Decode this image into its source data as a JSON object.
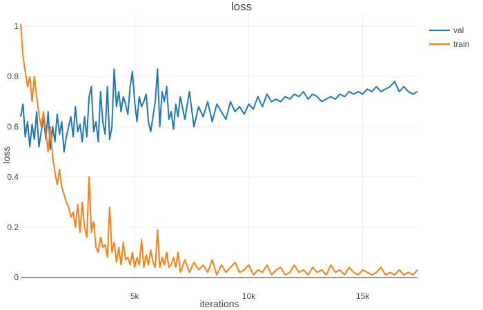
{
  "chart_data": {
    "type": "line",
    "title": "loss",
    "xlabel": "iterations",
    "ylabel": "loss",
    "xlim": [
      0,
      17400
    ],
    "ylim": [
      -0.02,
      1.05
    ],
    "x_ticks": [
      5000,
      10000,
      15000
    ],
    "x_tick_labels": [
      "5k",
      "10k",
      "15k"
    ],
    "y_ticks": [
      0,
      0.2,
      0.4,
      0.6,
      0.8,
      1
    ],
    "y_tick_labels": [
      "0",
      "0.2",
      "0.4",
      "0.6",
      "0.8",
      "1"
    ],
    "grid": true,
    "legend_position": "top-right",
    "series": [
      {
        "name": "val",
        "color": "#1f77b4",
        "x": [
          0,
          100,
          200,
          300,
          400,
          500,
          600,
          700,
          800,
          900,
          1000,
          1100,
          1200,
          1300,
          1400,
          1500,
          1600,
          1700,
          1800,
          1900,
          2000,
          2100,
          2200,
          2300,
          2400,
          2500,
          2600,
          2700,
          2800,
          2900,
          3000,
          3100,
          3200,
          3300,
          3400,
          3500,
          3600,
          3700,
          3800,
          3900,
          4000,
          4100,
          4200,
          4300,
          4400,
          4500,
          4600,
          4700,
          4800,
          4900,
          5000,
          5100,
          5200,
          5300,
          5400,
          5500,
          5600,
          5700,
          5800,
          5900,
          6000,
          6100,
          6200,
          6300,
          6400,
          6500,
          6600,
          6700,
          6800,
          6900,
          7000,
          7200,
          7400,
          7600,
          7800,
          8000,
          8200,
          8400,
          8600,
          8800,
          9000,
          9200,
          9400,
          9600,
          9800,
          10000,
          10200,
          10400,
          10600,
          10800,
          11000,
          11200,
          11400,
          11600,
          11800,
          12000,
          12200,
          12400,
          12600,
          12800,
          13000,
          13200,
          13400,
          13600,
          13800,
          14000,
          14200,
          14400,
          14600,
          14800,
          15000,
          15200,
          15400,
          15600,
          15800,
          16000,
          16200,
          16400,
          16600,
          16800,
          17000,
          17200,
          17400
        ],
        "y": [
          0.64,
          0.69,
          0.56,
          0.62,
          0.52,
          0.61,
          0.55,
          0.66,
          0.52,
          0.58,
          0.64,
          0.55,
          0.66,
          0.51,
          0.6,
          0.54,
          0.65,
          0.57,
          0.62,
          0.5,
          0.56,
          0.6,
          0.64,
          0.56,
          0.68,
          0.58,
          0.61,
          0.54,
          0.64,
          0.56,
          0.72,
          0.76,
          0.58,
          0.62,
          0.54,
          0.74,
          0.62,
          0.57,
          0.76,
          0.55,
          0.6,
          0.83,
          0.68,
          0.74,
          0.66,
          0.72,
          0.69,
          0.65,
          0.76,
          0.82,
          0.7,
          0.62,
          0.72,
          0.68,
          0.7,
          0.73,
          0.62,
          0.58,
          0.64,
          0.7,
          0.83,
          0.6,
          0.74,
          0.7,
          0.76,
          0.63,
          0.66,
          0.59,
          0.69,
          0.64,
          0.72,
          0.63,
          0.74,
          0.6,
          0.68,
          0.64,
          0.7,
          0.62,
          0.69,
          0.66,
          0.63,
          0.7,
          0.66,
          0.68,
          0.65,
          0.69,
          0.67,
          0.72,
          0.68,
          0.73,
          0.7,
          0.71,
          0.7,
          0.72,
          0.71,
          0.73,
          0.72,
          0.74,
          0.71,
          0.73,
          0.72,
          0.7,
          0.71,
          0.72,
          0.71,
          0.73,
          0.72,
          0.74,
          0.73,
          0.74,
          0.73,
          0.75,
          0.74,
          0.76,
          0.74,
          0.75,
          0.76,
          0.78,
          0.74,
          0.76,
          0.74,
          0.73,
          0.74
        ]
      },
      {
        "name": "train",
        "color": "#ff7f0e",
        "x": [
          0,
          100,
          200,
          300,
          400,
          500,
          600,
          700,
          800,
          900,
          1000,
          1100,
          1200,
          1300,
          1400,
          1500,
          1600,
          1700,
          1800,
          1900,
          2000,
          2100,
          2200,
          2300,
          2400,
          2500,
          2600,
          2700,
          2800,
          2900,
          3000,
          3100,
          3200,
          3300,
          3400,
          3500,
          3600,
          3700,
          3800,
          3900,
          4000,
          4100,
          4200,
          4300,
          4400,
          4500,
          4600,
          4700,
          4800,
          4900,
          5000,
          5100,
          5200,
          5300,
          5400,
          5500,
          5600,
          5700,
          5800,
          5900,
          6000,
          6100,
          6200,
          6300,
          6400,
          6500,
          6600,
          6700,
          6800,
          6900,
          7000,
          7200,
          7400,
          7600,
          7800,
          8000,
          8200,
          8400,
          8600,
          8800,
          9000,
          9200,
          9400,
          9600,
          9800,
          10000,
          10200,
          10400,
          10600,
          10800,
          11000,
          11200,
          11400,
          11600,
          11800,
          12000,
          12200,
          12400,
          12600,
          12800,
          13000,
          13200,
          13400,
          13600,
          13800,
          14000,
          14200,
          14400,
          14600,
          14800,
          15000,
          15200,
          15400,
          15600,
          15800,
          16000,
          16200,
          16400,
          16600,
          16800,
          17000,
          17200,
          17400
        ],
        "y": [
          1.01,
          0.88,
          0.82,
          0.76,
          0.8,
          0.7,
          0.8,
          0.72,
          0.65,
          0.6,
          0.66,
          0.58,
          0.5,
          0.6,
          0.48,
          0.42,
          0.37,
          0.43,
          0.36,
          0.33,
          0.3,
          0.28,
          0.24,
          0.26,
          0.2,
          0.29,
          0.18,
          0.3,
          0.2,
          0.16,
          0.4,
          0.18,
          0.22,
          0.12,
          0.1,
          0.16,
          0.12,
          0.13,
          0.08,
          0.28,
          0.1,
          0.14,
          0.06,
          0.12,
          0.05,
          0.14,
          0.07,
          0.08,
          0.05,
          0.1,
          0.04,
          0.08,
          0.05,
          0.15,
          0.04,
          0.09,
          0.05,
          0.11,
          0.06,
          0.04,
          0.19,
          0.04,
          0.08,
          0.05,
          0.1,
          0.04,
          0.05,
          0.08,
          0.04,
          0.1,
          0.02,
          0.07,
          0.02,
          0.06,
          0.03,
          0.05,
          0.02,
          0.07,
          0.01,
          0.05,
          0.02,
          0.04,
          0.06,
          0.02,
          0.03,
          0.05,
          0.01,
          0.03,
          0.02,
          0.05,
          0.01,
          0.03,
          0.04,
          0.01,
          0.02,
          0.05,
          0.02,
          0.03,
          0.01,
          0.04,
          0.02,
          0.03,
          0.01,
          0.05,
          0.02,
          0.03,
          0.01,
          0.04,
          0.02,
          0.01,
          0.03,
          0.02,
          0.01,
          0.02,
          0.04,
          0.01,
          0.02,
          0.01,
          0.03,
          0.01,
          0.02,
          0.01,
          0.03
        ]
      }
    ]
  }
}
